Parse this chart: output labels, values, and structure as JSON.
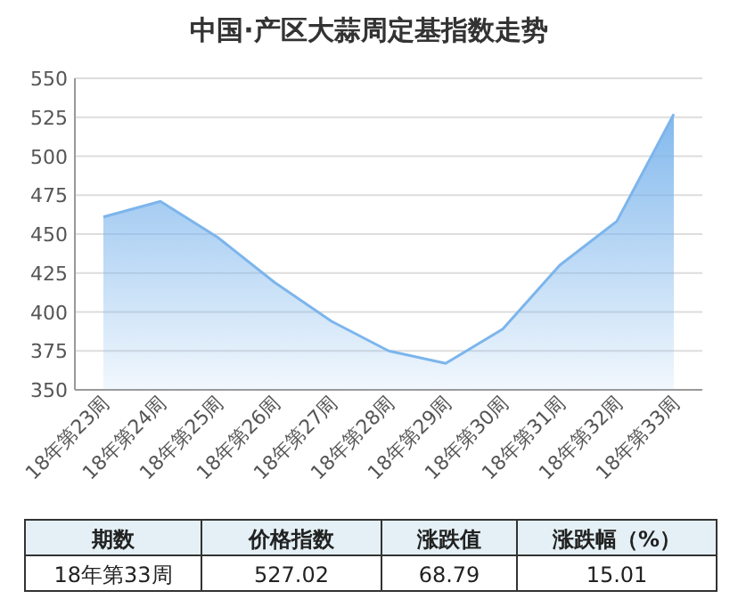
{
  "chart_data": {
    "type": "area",
    "title": "中国·产区大蒜周定基指数走势",
    "categories": [
      "18年第23周",
      "18年第24周",
      "18年第25周",
      "18年第26周",
      "18年第27周",
      "18年第28周",
      "18年第29周",
      "18年第30周",
      "18年第31周",
      "18年第32周",
      "18年第33周"
    ],
    "values": [
      461,
      471,
      448,
      419,
      394,
      375,
      367,
      389,
      430,
      458.23,
      527.02
    ],
    "color": "#7cb5ec",
    "ylim": [
      350,
      550
    ],
    "yticks": [
      350,
      375,
      400,
      425,
      450,
      475,
      500,
      525,
      550
    ],
    "grid": "y",
    "annotations": [
      "期数",
      "价格指数",
      "涨跌值",
      "涨跌幅（%）",
      "18年第33周",
      "527.02",
      "68.79",
      "15.01"
    ]
  }
}
